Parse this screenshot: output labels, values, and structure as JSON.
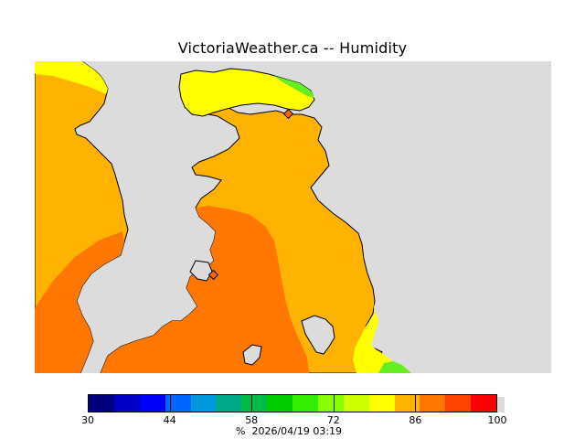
{
  "title": "VictoriaWeather.ca -- Humidity",
  "colors": {
    "land_bg": "#dcdcdc",
    "ocean_bg": "#dcdcdc",
    "zone_yellow": "#ffff00",
    "zone_light_orange": "#ffb300",
    "zone_orange": "#ff7700",
    "zone_green": "#66ee22",
    "station_marker": "#ff6600"
  },
  "colorbar": {
    "colors": [
      "#000080",
      "#0000c8",
      "#0000ff",
      "#0066ff",
      "#0099dd",
      "#00aa88",
      "#00bb44",
      "#00cc00",
      "#33ee00",
      "#88ff00",
      "#ccff00",
      "#ffff00",
      "#ffb300",
      "#ff7700",
      "#ff4400",
      "#ff0000"
    ],
    "tick_labels": [
      "30",
      "44",
      "58",
      "72",
      "86",
      "100"
    ],
    "tick_values": [
      30,
      44,
      58,
      72,
      86,
      100
    ],
    "min": 30,
    "max": 100
  },
  "caption": {
    "unit": "%",
    "timestamp": "2026/04/19 03:19"
  }
}
